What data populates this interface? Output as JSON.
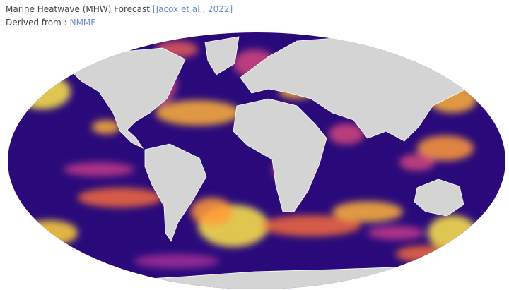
{
  "header": {
    "title": "Marine Heatwave (MHW) Forecast",
    "citation": "[Jacox et al., 2022]",
    "source_label": "Derived from :",
    "source": "NMME"
  }
}
